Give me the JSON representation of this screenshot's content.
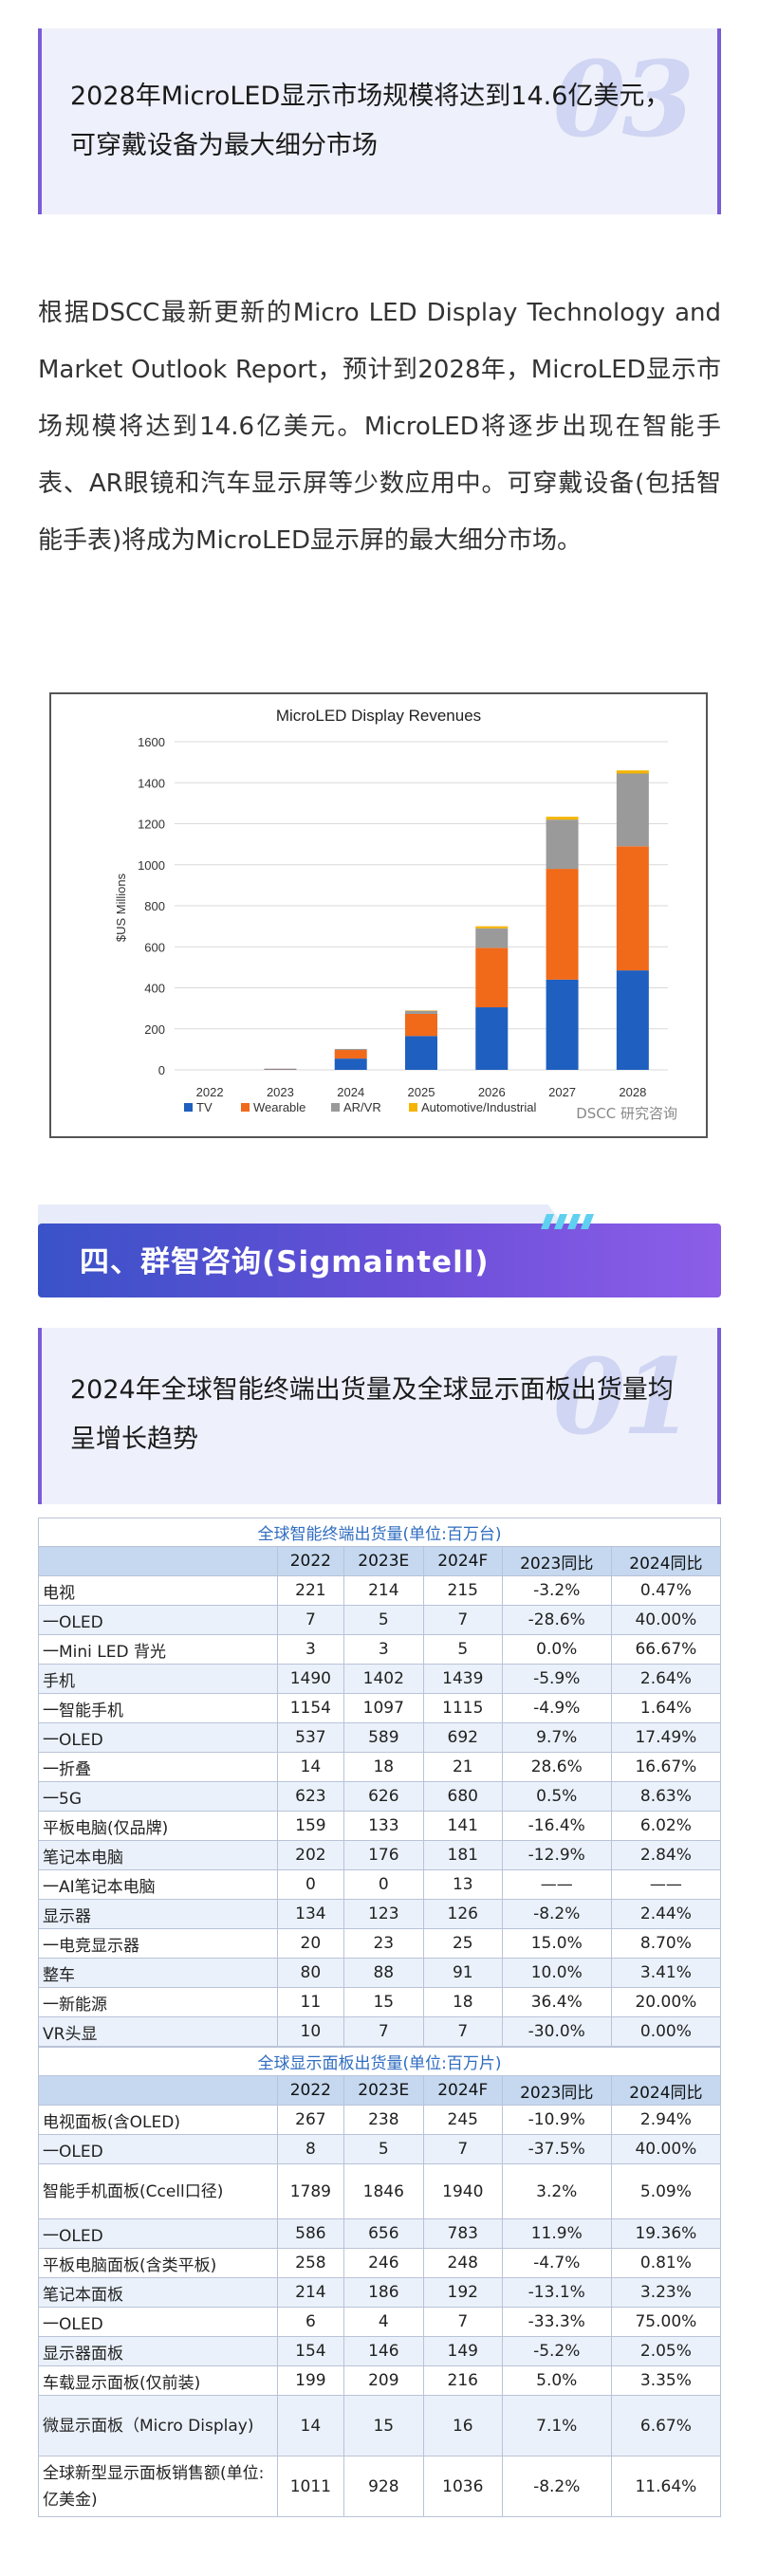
{
  "section03": {
    "number": "03",
    "title": "2028年MicroLED显示市场规模将达到14.6亿美元，可穿戴设备为最大细分市场"
  },
  "paragraph": "根据DSCC最新更新的Micro LED Display Technology and Market Outlook Report，预计到2028年，MicroLED显示市场规模将达到14.6亿美元。MicroLED将逐步出现在智能手表、AR眼镜和汽车显示屏等少数应用中。可穿戴设备(包括智能手表)将成为MicroLED显示屏的最大细分市场。",
  "chart_data": {
    "type": "bar",
    "stacked": true,
    "title": "MicroLED Display Revenues",
    "ylabel": "$US Millions",
    "xlabel": "",
    "ylim": [
      0,
      1600
    ],
    "yticks": [
      0,
      200,
      400,
      600,
      800,
      1000,
      1200,
      1400,
      1600
    ],
    "categories": [
      "2022",
      "2023",
      "2024",
      "2025",
      "2026",
      "2027",
      "2028"
    ],
    "series": [
      {
        "name": "TV",
        "color": "#1f5fbf",
        "values": [
          0,
          2,
          55,
          165,
          305,
          440,
          485
        ]
      },
      {
        "name": "Wearable",
        "color": "#f06a1a",
        "values": [
          0,
          2,
          42,
          108,
          290,
          540,
          605
        ]
      },
      {
        "name": "AR/VR",
        "color": "#9a9a9a",
        "values": [
          0,
          2,
          5,
          15,
          95,
          240,
          355
        ]
      },
      {
        "name": "Automotive/Industrial",
        "color": "#f5b400",
        "values": [
          0,
          0,
          0,
          2,
          10,
          14,
          15
        ]
      }
    ],
    "grid": true,
    "legend": "bottom",
    "watermark": "DSCC 研究咨询"
  },
  "banner": {
    "title": "四、群智咨询(Sigmaintell)"
  },
  "section01": {
    "number": "01",
    "title": "2024年全球智能终端出货量及全球显示面板出货量均呈增长趋势"
  },
  "table1": {
    "title": "全球智能终端出货量(单位:百万台)",
    "headers": [
      "",
      "2022",
      "2023E",
      "2024F",
      "2023同比",
      "2024同比"
    ],
    "rows": [
      [
        "电视",
        "221",
        "214",
        "215",
        "-3.2%",
        "0.47%"
      ],
      [
        "一OLED",
        "7",
        "5",
        "7",
        "-28.6%",
        "40.00%"
      ],
      [
        "一Mini LED 背光",
        "3",
        "3",
        "5",
        "0.0%",
        "66.67%"
      ],
      [
        "手机",
        "1490",
        "1402",
        "1439",
        "-5.9%",
        "2.64%"
      ],
      [
        "一智能手机",
        "1154",
        "1097",
        "1115",
        "-4.9%",
        "1.64%"
      ],
      [
        "一OLED",
        "537",
        "589",
        "692",
        "9.7%",
        "17.49%"
      ],
      [
        "一折叠",
        "14",
        "18",
        "21",
        "28.6%",
        "16.67%"
      ],
      [
        "一5G",
        "623",
        "626",
        "680",
        "0.5%",
        "8.63%"
      ],
      [
        "平板电脑(仅品牌)",
        "159",
        "133",
        "141",
        "-16.4%",
        "6.02%"
      ],
      [
        "笔记本电脑",
        "202",
        "176",
        "181",
        "-12.9%",
        "2.84%"
      ],
      [
        "一AI笔记本电脑",
        "0",
        "0",
        "13",
        "——",
        "——"
      ],
      [
        "显示器",
        "134",
        "123",
        "126",
        "-8.2%",
        "2.44%"
      ],
      [
        "一电竞显示器",
        "20",
        "23",
        "25",
        "15.0%",
        "8.70%"
      ],
      [
        "整车",
        "80",
        "88",
        "91",
        "10.0%",
        "3.41%"
      ],
      [
        "一新能源",
        "11",
        "15",
        "18",
        "36.4%",
        "20.00%"
      ],
      [
        "VR头显",
        "10",
        "7",
        "7",
        "-30.0%",
        "0.00%"
      ]
    ]
  },
  "table2": {
    "title": "全球显示面板出货量(单位:百万片)",
    "headers": [
      "",
      "2022",
      "2023E",
      "2024F",
      "2023同比",
      "2024同比"
    ],
    "rows": [
      [
        "电视面板(含OLED)",
        "267",
        "238",
        "245",
        "-10.9%",
        "2.94%"
      ],
      [
        "一OLED",
        "8",
        "5",
        "7",
        "-37.5%",
        "40.00%"
      ],
      [
        "智能手机面板(Ccell口径)",
        "1789",
        "1846",
        "1940",
        "3.2%",
        "5.09%"
      ],
      [
        "一OLED",
        "586",
        "656",
        "783",
        "11.9%",
        "19.36%"
      ],
      [
        "平板电脑面板(含类平板)",
        "258",
        "246",
        "248",
        "-4.7%",
        "0.81%"
      ],
      [
        "笔记本面板",
        "214",
        "186",
        "192",
        "-13.1%",
        "3.23%"
      ],
      [
        "一OLED",
        "6",
        "4",
        "7",
        "-33.3%",
        "75.00%"
      ],
      [
        "显示器面板",
        "154",
        "146",
        "149",
        "-5.2%",
        "2.05%"
      ],
      [
        "车载显示面板(仅前装)",
        "199",
        "209",
        "216",
        "5.0%",
        "3.35%"
      ],
      [
        "微显示面板（Micro Display)",
        "14",
        "15",
        "16",
        "7.1%",
        "6.67%"
      ],
      [
        "全球新型显示面板销售额(单位:亿美金)",
        "1011",
        "928",
        "1036",
        "-8.2%",
        "11.64%"
      ]
    ]
  }
}
